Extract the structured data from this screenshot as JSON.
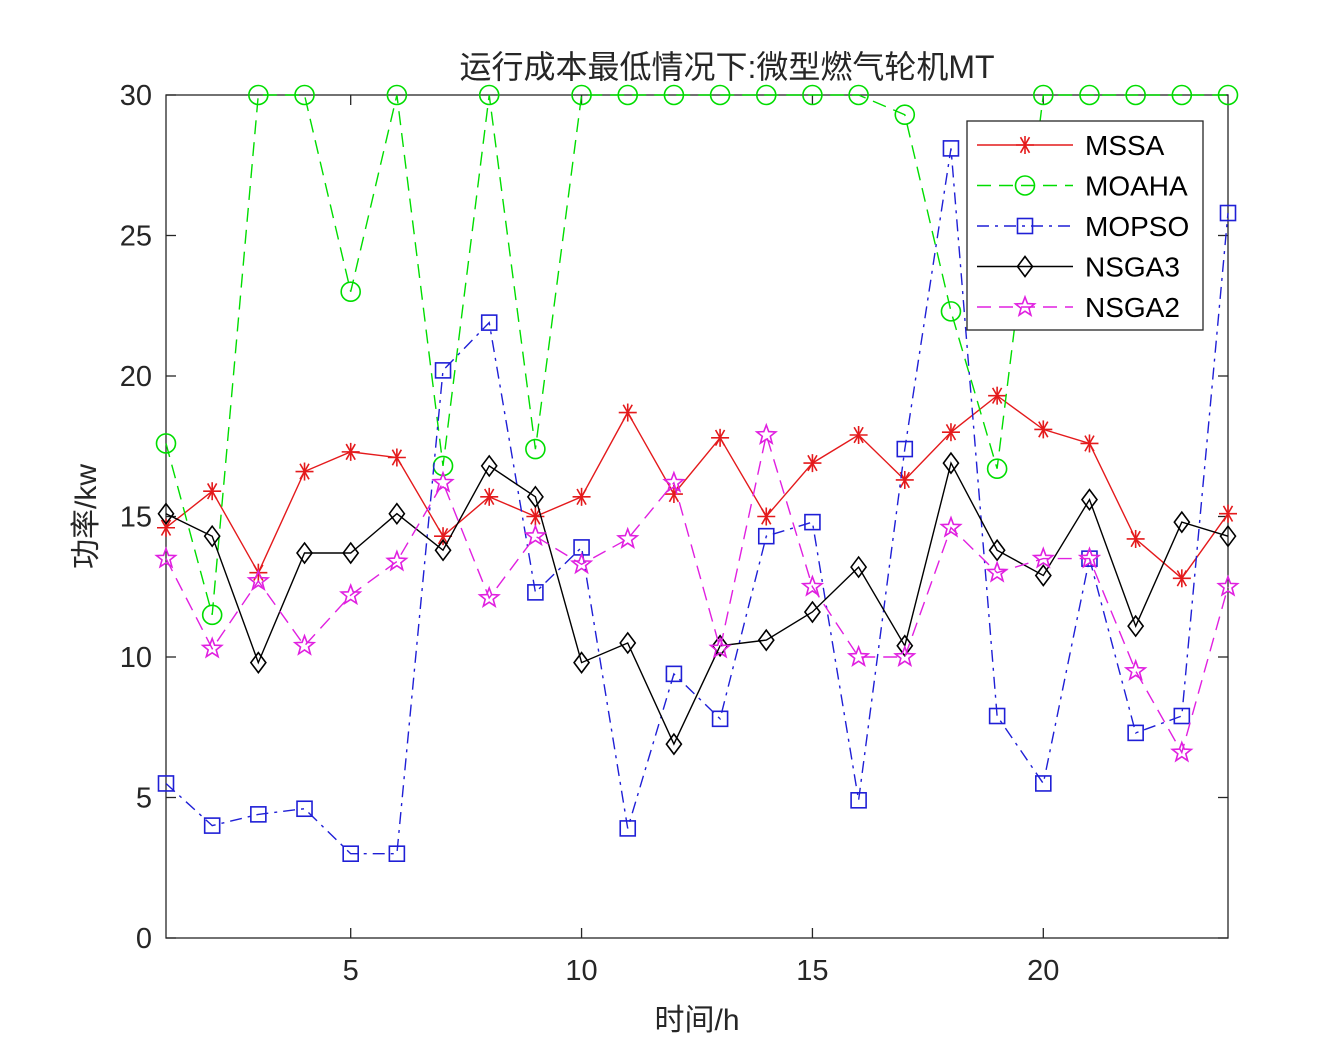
{
  "chart_data": {
    "type": "line",
    "title": "运行成本最低情况下:微型燃气轮机MT",
    "xlabel": "时间/h",
    "ylabel": "功率/kw",
    "xlim": [
      1,
      24
    ],
    "ylim": [
      0,
      30
    ],
    "xticks": [
      5,
      10,
      15,
      20
    ],
    "yticks": [
      0,
      5,
      10,
      15,
      20,
      25,
      30
    ],
    "grid": false,
    "legend_position": "top-right",
    "x": [
      1,
      2,
      3,
      4,
      5,
      6,
      7,
      8,
      9,
      10,
      11,
      12,
      13,
      14,
      15,
      16,
      17,
      18,
      19,
      20,
      21,
      22,
      23,
      24
    ],
    "series": [
      {
        "name": "MSSA",
        "color": "#e41a1c",
        "line": "solid",
        "marker": "asterisk",
        "values": [
          14.6,
          15.9,
          13.0,
          16.6,
          17.3,
          17.1,
          14.3,
          15.7,
          15.0,
          15.7,
          18.7,
          15.8,
          17.8,
          15.0,
          16.9,
          17.9,
          16.3,
          18.0,
          19.3,
          18.1,
          17.6,
          14.2,
          12.8,
          15.1
        ]
      },
      {
        "name": "MOAHA",
        "color": "#00dd00",
        "line": "dashed",
        "marker": "circle",
        "values": [
          17.6,
          11.5,
          30,
          30,
          23.0,
          30,
          16.8,
          30,
          17.4,
          30,
          30,
          30,
          30,
          30,
          30,
          30,
          29.3,
          22.3,
          16.7,
          30,
          30,
          30,
          30,
          30
        ]
      },
      {
        "name": "MOPSO",
        "color": "#1f1fd6",
        "line": "dashdot",
        "marker": "square",
        "values": [
          5.5,
          4.0,
          4.4,
          4.6,
          3.0,
          3.0,
          20.2,
          21.9,
          12.3,
          13.9,
          3.9,
          9.4,
          7.8,
          14.3,
          14.8,
          4.9,
          17.4,
          28.1,
          7.9,
          5.5,
          13.5,
          7.3,
          7.9,
          25.8
        ]
      },
      {
        "name": "NSGA3",
        "color": "#000000",
        "line": "solid",
        "marker": "diamond",
        "values": [
          15.1,
          14.3,
          9.8,
          13.7,
          13.7,
          15.1,
          13.8,
          16.8,
          15.7,
          9.8,
          10.5,
          6.9,
          10.4,
          10.6,
          11.6,
          13.2,
          10.4,
          16.9,
          13.8,
          12.9,
          15.6,
          11.1,
          14.8,
          14.3
        ]
      },
      {
        "name": "NSGA2",
        "color": "#e020e0",
        "line": "dashed",
        "marker": "star",
        "values": [
          13.5,
          10.3,
          12.7,
          10.4,
          12.2,
          13.4,
          16.2,
          12.1,
          14.3,
          13.3,
          14.2,
          16.2,
          10.3,
          17.9,
          12.5,
          10.0,
          10.0,
          14.6,
          13.0,
          13.5,
          13.5,
          9.5,
          6.6,
          12.5
        ]
      }
    ]
  }
}
